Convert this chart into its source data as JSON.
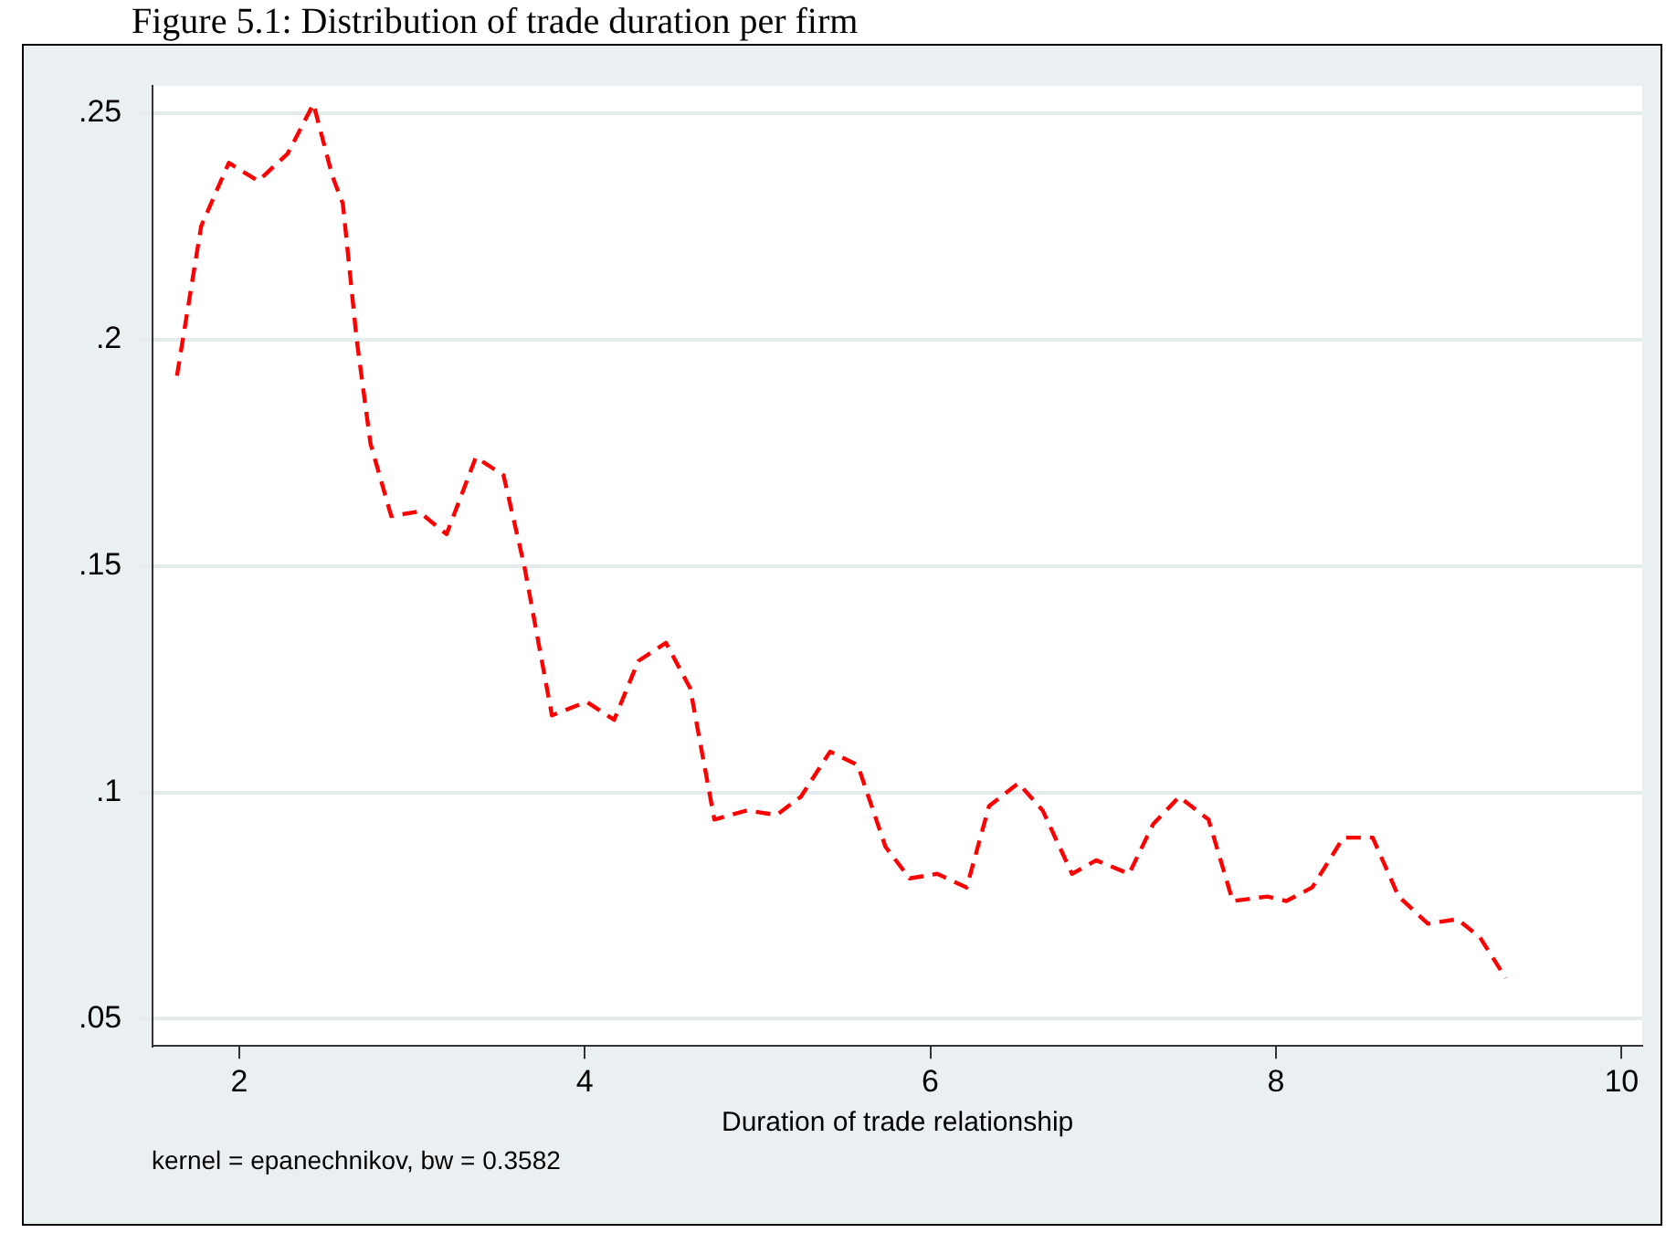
{
  "chart_data": {
    "type": "line",
    "title": "Figure 5.1: Distribution of trade duration per firm",
    "xlabel": "Duration of trade relationship",
    "annotations": [
      "kernel = epanechnikov, bw = 0.3582"
    ],
    "x": [
      1.64,
      1.78,
      1.94,
      2.11,
      2.28,
      2.43,
      2.54,
      2.6,
      2.68,
      2.76,
      2.88,
      3.04,
      3.2,
      3.37,
      3.53,
      3.65,
      3.81,
      4.01,
      4.17,
      4.31,
      4.47,
      4.61,
      4.75,
      4.94,
      5.11,
      5.25,
      5.42,
      5.58,
      5.74,
      5.88,
      6.04,
      6.21,
      6.34,
      6.51,
      6.65,
      6.82,
      6.96,
      7.15,
      7.29,
      7.44,
      7.61,
      7.75,
      7.95,
      8.06,
      8.21,
      8.39,
      8.56,
      8.71,
      8.88,
      9.05,
      9.18,
      9.33
    ],
    "series": [
      {
        "color": "#ff0000",
        "values": [
          0.192,
          0.225,
          0.239,
          0.235,
          0.241,
          0.252,
          0.236,
          0.23,
          0.2,
          0.177,
          0.161,
          0.162,
          0.157,
          0.174,
          0.17,
          0.15,
          0.117,
          0.12,
          0.116,
          0.129,
          0.133,
          0.123,
          0.094,
          0.096,
          0.095,
          0.099,
          0.109,
          0.106,
          0.088,
          0.081,
          0.082,
          0.079,
          0.097,
          0.102,
          0.096,
          0.082,
          0.085,
          0.082,
          0.093,
          0.099,
          0.094,
          0.076,
          0.077,
          0.076,
          0.079,
          0.09,
          0.09,
          0.077,
          0.071,
          0.072,
          0.068,
          0.059
        ]
      }
    ],
    "xlim": [
      1.5,
      10.12
    ],
    "xticks": [
      2,
      4,
      6,
      8,
      10
    ],
    "ylim": [
      0.044,
      0.256
    ],
    "yticks": [
      {
        "value": 0.05,
        "label": ".05"
      },
      {
        "value": 0.1,
        "label": ".1"
      },
      {
        "value": 0.15,
        "label": ".15"
      },
      {
        "value": 0.2,
        "label": ".2"
      },
      {
        "value": 0.25,
        "label": ".25"
      }
    ],
    "grid": "y",
    "legend": false,
    "marker": "none",
    "line_style": "dashed"
  }
}
